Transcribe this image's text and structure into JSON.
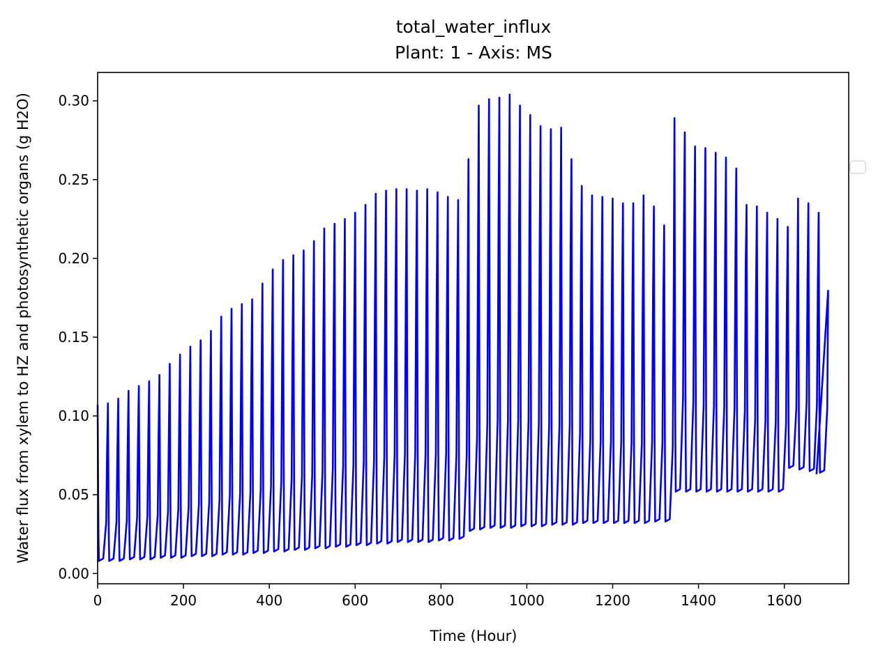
{
  "chart_data": {
    "type": "line",
    "title": "total_water_influx",
    "subtitle": "Plant: 1 - Axis: MS",
    "xlabel": "Time (Hour)",
    "ylabel": "Water flux from xylem to HZ and photosynthetic organs (g H2O)",
    "xlim": [
      0,
      1750
    ],
    "ylim": [
      -0.0065,
      0.318
    ],
    "xticks": [
      0,
      200,
      400,
      600,
      800,
      1000,
      1200,
      1400,
      1600
    ],
    "yticks": [
      0.0,
      0.05,
      0.1,
      0.15,
      0.2,
      0.25,
      0.3
    ],
    "xtick_labels": [
      "0",
      "200",
      "400",
      "600",
      "800",
      "1000",
      "1200",
      "1400",
      "1600"
    ],
    "ytick_labels": [
      "0.00",
      "0.05",
      "0.10",
      "0.15",
      "0.20",
      "0.25",
      "0.30"
    ],
    "grid": false,
    "legend": "right, empty",
    "series": [
      {
        "color": "#0000ff",
        "cycle_period_hours": 24,
        "end_hour": 1675,
        "end_value": 0.063,
        "daily_peaks": [
          0.107,
          0.108,
          0.111,
          0.116,
          0.119,
          0.122,
          0.126,
          0.133,
          0.139,
          0.144,
          0.148,
          0.154,
          0.163,
          0.168,
          0.171,
          0.174,
          0.184,
          0.193,
          0.199,
          0.202,
          0.205,
          0.211,
          0.219,
          0.222,
          0.225,
          0.229,
          0.234,
          0.241,
          0.243,
          0.244,
          0.244,
          0.243,
          0.244,
          0.242,
          0.239,
          0.237,
          0.263,
          0.297,
          0.301,
          0.302,
          0.304,
          0.297,
          0.291,
          0.284,
          0.282,
          0.283,
          0.263,
          0.246,
          0.24,
          0.239,
          0.238,
          0.235,
          0.235,
          0.24,
          0.233,
          0.221,
          0.289,
          0.28,
          0.271,
          0.27,
          0.267,
          0.264,
          0.257,
          0.234,
          0.233,
          0.229,
          0.225,
          0.22,
          0.238,
          0.235,
          0.229
        ],
        "daily_minima": [
          0.008,
          0.008,
          0.008,
          0.009,
          0.009,
          0.009,
          0.01,
          0.01,
          0.01,
          0.011,
          0.011,
          0.011,
          0.012,
          0.012,
          0.012,
          0.013,
          0.013,
          0.014,
          0.014,
          0.015,
          0.015,
          0.016,
          0.016,
          0.017,
          0.017,
          0.018,
          0.018,
          0.019,
          0.019,
          0.02,
          0.02,
          0.02,
          0.02,
          0.021,
          0.021,
          0.022,
          0.027,
          0.028,
          0.029,
          0.029,
          0.029,
          0.03,
          0.03,
          0.03,
          0.031,
          0.031,
          0.031,
          0.032,
          0.032,
          0.032,
          0.032,
          0.032,
          0.032,
          0.032,
          0.033,
          0.033,
          0.052,
          0.052,
          0.052,
          0.052,
          0.052,
          0.052,
          0.052,
          0.052,
          0.052,
          0.052,
          0.052,
          0.067,
          0.066,
          0.065,
          0.064
        ]
      }
    ]
  }
}
